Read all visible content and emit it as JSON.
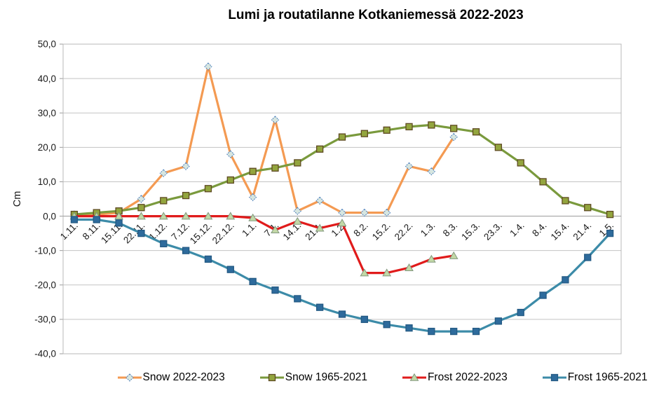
{
  "title": "Lumi ja routatilanne Kotkaniemessä 2022-2023",
  "chart_data": {
    "type": "line",
    "title": "Lumi ja routatilanne Kotkaniemessä 2022-2023",
    "ylabel": "Cm",
    "ylim": [
      -40,
      50
    ],
    "ytick_step": 10,
    "ytick_labels": [
      "50,0",
      "40,0",
      "30,0",
      "20,0",
      "10,0",
      "0,0",
      "-10,0",
      "-20,0",
      "-30,0",
      "-40,0"
    ],
    "grid": true,
    "legend_position": "bottom",
    "categories": [
      "1.11.",
      "8.11.",
      "15.11.",
      "22.11.",
      "1.12.",
      "7.12.",
      "15.12.",
      "22.12.",
      "1.1.",
      "7.1.",
      "14.1.",
      "21.1.",
      "1.2.",
      "8.2.",
      "15.2.",
      "22.2.",
      "1.3.",
      "8.3.",
      "15.3.",
      "23.3.",
      "1.4.",
      "8.4.",
      "15.4.",
      "21.4.",
      "1.5."
    ],
    "series": [
      {
        "name": "Snow 2022-2023",
        "line_color": "#F49A52",
        "marker": "diamond",
        "marker_fill": "#D7E6E0",
        "marker_stroke": "#4A7EBB",
        "values": [
          0.5,
          0.5,
          1,
          5,
          12.5,
          14.5,
          43.5,
          18,
          5.5,
          28,
          1.5,
          4.5,
          1,
          1,
          1,
          14.5,
          13,
          23
        ]
      },
      {
        "name": "Snow 1965-2021",
        "line_color": "#7A9A3D",
        "marker": "square",
        "marker_fill": "#93A53E",
        "marker_stroke": "#5E4A22",
        "values": [
          0.5,
          1,
          1.5,
          2.5,
          4.5,
          6,
          8,
          10.5,
          13,
          14,
          15.5,
          19.5,
          23,
          24,
          25,
          26,
          26.5,
          25.5,
          24.5,
          20,
          15.5,
          10,
          4.5,
          2.5,
          0.5
        ]
      },
      {
        "name": "Frost 2022-2023",
        "line_color": "#E01B1B",
        "marker": "triangle",
        "marker_fill": "#C2D8A6",
        "marker_stroke": "#82977E",
        "values": [
          0,
          0,
          0,
          0,
          0,
          0,
          0,
          0,
          -0.5,
          -4,
          -1.5,
          -3.5,
          -2,
          -16.5,
          -16.5,
          -15,
          -12.5,
          -11.5
        ]
      },
      {
        "name": "Frost 1965-2021",
        "line_color": "#3C8BA8",
        "marker": "square",
        "marker_fill": "#2E6B9C",
        "marker_stroke": "#245A84",
        "values": [
          -1,
          -1,
          -2,
          -5,
          -8,
          -10,
          -12.5,
          -15.5,
          -19,
          -21.5,
          -24,
          -26.5,
          -28.5,
          -30,
          -31.5,
          -32.5,
          -33.5,
          -33.5,
          -33.5,
          -30.5,
          -28,
          -23,
          -18.5,
          -12,
          -5
        ]
      }
    ],
    "axis_colors": {
      "gridline": "#C3C3C3",
      "plot_border": "#B8B8B8",
      "zero_axis": "#9B9B9B",
      "tick": "#9B9B9B",
      "text": "#1A1A1A"
    }
  }
}
